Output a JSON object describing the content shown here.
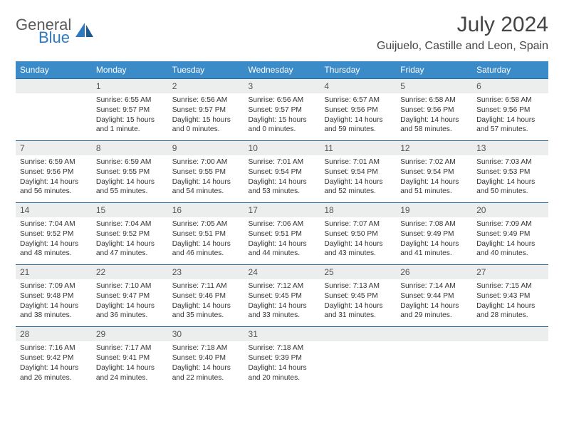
{
  "brand": {
    "word1": "General",
    "word2": "Blue",
    "color_general": "#5a5a5a",
    "color_blue": "#2f7abf"
  },
  "title": "July 2024",
  "location": "Guijuelo, Castille and Leon, Spain",
  "header_bg": "#3b8bc9",
  "rule_color": "#2b6aa0",
  "daynum_bg": "#eceded",
  "weekdays": [
    "Sunday",
    "Monday",
    "Tuesday",
    "Wednesday",
    "Thursday",
    "Friday",
    "Saturday"
  ],
  "weeks": [
    {
      "nums": [
        "",
        "1",
        "2",
        "3",
        "4",
        "5",
        "6"
      ],
      "cells": [
        null,
        {
          "sr": "Sunrise: 6:55 AM",
          "ss": "Sunset: 9:57 PM",
          "d1": "Daylight: 15 hours",
          "d2": "and 1 minute."
        },
        {
          "sr": "Sunrise: 6:56 AM",
          "ss": "Sunset: 9:57 PM",
          "d1": "Daylight: 15 hours",
          "d2": "and 0 minutes."
        },
        {
          "sr": "Sunrise: 6:56 AM",
          "ss": "Sunset: 9:57 PM",
          "d1": "Daylight: 15 hours",
          "d2": "and 0 minutes."
        },
        {
          "sr": "Sunrise: 6:57 AM",
          "ss": "Sunset: 9:56 PM",
          "d1": "Daylight: 14 hours",
          "d2": "and 59 minutes."
        },
        {
          "sr": "Sunrise: 6:58 AM",
          "ss": "Sunset: 9:56 PM",
          "d1": "Daylight: 14 hours",
          "d2": "and 58 minutes."
        },
        {
          "sr": "Sunrise: 6:58 AM",
          "ss": "Sunset: 9:56 PM",
          "d1": "Daylight: 14 hours",
          "d2": "and 57 minutes."
        }
      ]
    },
    {
      "nums": [
        "7",
        "8",
        "9",
        "10",
        "11",
        "12",
        "13"
      ],
      "cells": [
        {
          "sr": "Sunrise: 6:59 AM",
          "ss": "Sunset: 9:56 PM",
          "d1": "Daylight: 14 hours",
          "d2": "and 56 minutes."
        },
        {
          "sr": "Sunrise: 6:59 AM",
          "ss": "Sunset: 9:55 PM",
          "d1": "Daylight: 14 hours",
          "d2": "and 55 minutes."
        },
        {
          "sr": "Sunrise: 7:00 AM",
          "ss": "Sunset: 9:55 PM",
          "d1": "Daylight: 14 hours",
          "d2": "and 54 minutes."
        },
        {
          "sr": "Sunrise: 7:01 AM",
          "ss": "Sunset: 9:54 PM",
          "d1": "Daylight: 14 hours",
          "d2": "and 53 minutes."
        },
        {
          "sr": "Sunrise: 7:01 AM",
          "ss": "Sunset: 9:54 PM",
          "d1": "Daylight: 14 hours",
          "d2": "and 52 minutes."
        },
        {
          "sr": "Sunrise: 7:02 AM",
          "ss": "Sunset: 9:54 PM",
          "d1": "Daylight: 14 hours",
          "d2": "and 51 minutes."
        },
        {
          "sr": "Sunrise: 7:03 AM",
          "ss": "Sunset: 9:53 PM",
          "d1": "Daylight: 14 hours",
          "d2": "and 50 minutes."
        }
      ]
    },
    {
      "nums": [
        "14",
        "15",
        "16",
        "17",
        "18",
        "19",
        "20"
      ],
      "cells": [
        {
          "sr": "Sunrise: 7:04 AM",
          "ss": "Sunset: 9:52 PM",
          "d1": "Daylight: 14 hours",
          "d2": "and 48 minutes."
        },
        {
          "sr": "Sunrise: 7:04 AM",
          "ss": "Sunset: 9:52 PM",
          "d1": "Daylight: 14 hours",
          "d2": "and 47 minutes."
        },
        {
          "sr": "Sunrise: 7:05 AM",
          "ss": "Sunset: 9:51 PM",
          "d1": "Daylight: 14 hours",
          "d2": "and 46 minutes."
        },
        {
          "sr": "Sunrise: 7:06 AM",
          "ss": "Sunset: 9:51 PM",
          "d1": "Daylight: 14 hours",
          "d2": "and 44 minutes."
        },
        {
          "sr": "Sunrise: 7:07 AM",
          "ss": "Sunset: 9:50 PM",
          "d1": "Daylight: 14 hours",
          "d2": "and 43 minutes."
        },
        {
          "sr": "Sunrise: 7:08 AM",
          "ss": "Sunset: 9:49 PM",
          "d1": "Daylight: 14 hours",
          "d2": "and 41 minutes."
        },
        {
          "sr": "Sunrise: 7:09 AM",
          "ss": "Sunset: 9:49 PM",
          "d1": "Daylight: 14 hours",
          "d2": "and 40 minutes."
        }
      ]
    },
    {
      "nums": [
        "21",
        "22",
        "23",
        "24",
        "25",
        "26",
        "27"
      ],
      "cells": [
        {
          "sr": "Sunrise: 7:09 AM",
          "ss": "Sunset: 9:48 PM",
          "d1": "Daylight: 14 hours",
          "d2": "and 38 minutes."
        },
        {
          "sr": "Sunrise: 7:10 AM",
          "ss": "Sunset: 9:47 PM",
          "d1": "Daylight: 14 hours",
          "d2": "and 36 minutes."
        },
        {
          "sr": "Sunrise: 7:11 AM",
          "ss": "Sunset: 9:46 PM",
          "d1": "Daylight: 14 hours",
          "d2": "and 35 minutes."
        },
        {
          "sr": "Sunrise: 7:12 AM",
          "ss": "Sunset: 9:45 PM",
          "d1": "Daylight: 14 hours",
          "d2": "and 33 minutes."
        },
        {
          "sr": "Sunrise: 7:13 AM",
          "ss": "Sunset: 9:45 PM",
          "d1": "Daylight: 14 hours",
          "d2": "and 31 minutes."
        },
        {
          "sr": "Sunrise: 7:14 AM",
          "ss": "Sunset: 9:44 PM",
          "d1": "Daylight: 14 hours",
          "d2": "and 29 minutes."
        },
        {
          "sr": "Sunrise: 7:15 AM",
          "ss": "Sunset: 9:43 PM",
          "d1": "Daylight: 14 hours",
          "d2": "and 28 minutes."
        }
      ]
    },
    {
      "nums": [
        "28",
        "29",
        "30",
        "31",
        "",
        "",
        ""
      ],
      "cells": [
        {
          "sr": "Sunrise: 7:16 AM",
          "ss": "Sunset: 9:42 PM",
          "d1": "Daylight: 14 hours",
          "d2": "and 26 minutes."
        },
        {
          "sr": "Sunrise: 7:17 AM",
          "ss": "Sunset: 9:41 PM",
          "d1": "Daylight: 14 hours",
          "d2": "and 24 minutes."
        },
        {
          "sr": "Sunrise: 7:18 AM",
          "ss": "Sunset: 9:40 PM",
          "d1": "Daylight: 14 hours",
          "d2": "and 22 minutes."
        },
        {
          "sr": "Sunrise: 7:18 AM",
          "ss": "Sunset: 9:39 PM",
          "d1": "Daylight: 14 hours",
          "d2": "and 20 minutes."
        },
        null,
        null,
        null
      ]
    }
  ]
}
